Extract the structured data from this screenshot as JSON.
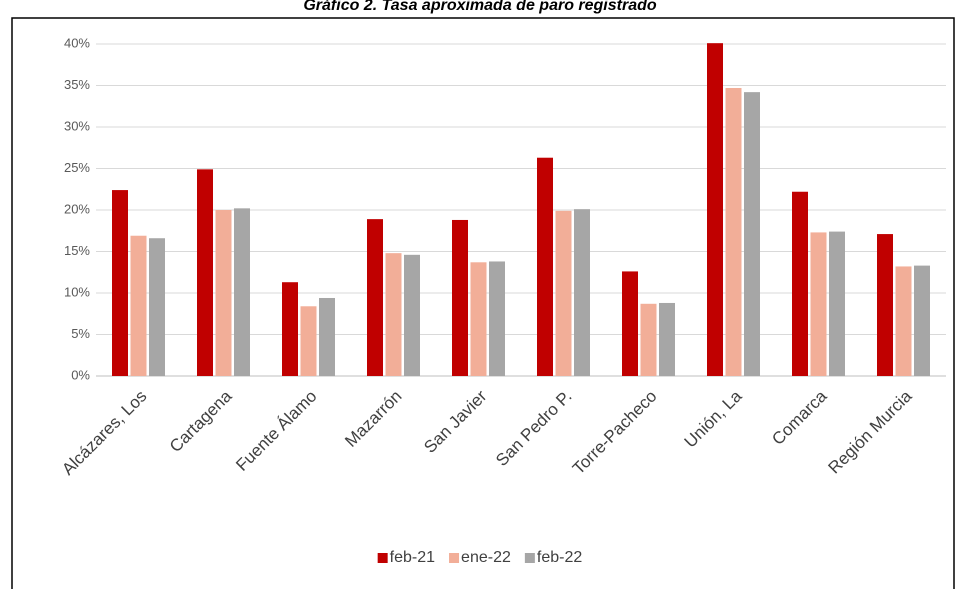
{
  "chart_data": {
    "type": "bar",
    "title": "Gráfico 2. Tasa aproximada de paro registrado",
    "categories": [
      "Alcázares, Los",
      "Cartagena",
      "Fuente Álamo",
      "Mazarrón",
      "San Javier",
      "San Pedro P.",
      "Torre-Pacheco",
      "Unión, La",
      "Comarca",
      "Región Murcia"
    ],
    "series": [
      {
        "name": "feb-21",
        "color": "#c00000",
        "values": [
          22.4,
          24.9,
          11.3,
          18.9,
          18.8,
          26.3,
          12.6,
          40.1,
          22.2,
          17.1
        ]
      },
      {
        "name": "ene-22",
        "color": "#f2ae98",
        "values": [
          16.9,
          20.0,
          8.4,
          14.8,
          13.7,
          19.9,
          8.7,
          34.7,
          17.3,
          13.2
        ]
      },
      {
        "name": "feb-22",
        "color": "#a6a6a6",
        "values": [
          16.6,
          20.2,
          9.4,
          14.6,
          13.8,
          20.1,
          8.8,
          34.2,
          17.4,
          13.3
        ]
      }
    ],
    "ylim": [
      0,
      40
    ],
    "yticks": [
      {
        "value": 0,
        "label": "0%"
      },
      {
        "value": 5,
        "label": "5%"
      },
      {
        "value": 10,
        "label": "10%"
      },
      {
        "value": 15,
        "label": "15%"
      },
      {
        "value": 20,
        "label": "20%"
      },
      {
        "value": 25,
        "label": "25%"
      },
      {
        "value": 30,
        "label": "30%"
      },
      {
        "value": 35,
        "label": "35%"
      },
      {
        "value": 40,
        "label": "40%"
      }
    ],
    "grid": true,
    "legend": "bottom"
  }
}
